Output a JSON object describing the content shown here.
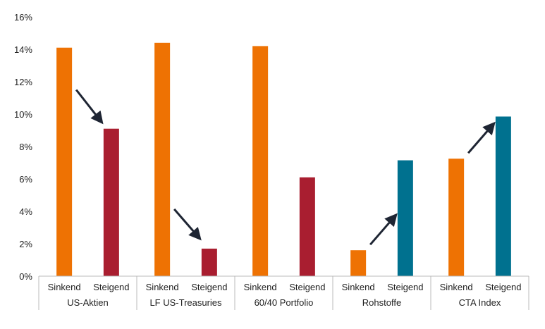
{
  "chart_data": {
    "type": "bar",
    "title": "",
    "xlabel": "",
    "ylabel": "",
    "ylim": [
      0,
      16
    ],
    "yticks": [
      "0%",
      "2%",
      "4%",
      "6%",
      "8%",
      "10%",
      "12%",
      "14%",
      "16%"
    ],
    "grid": false,
    "groups": [
      {
        "name": "US-Aktien",
        "bars": [
          {
            "label": "Sinkend",
            "value": 14.1,
            "color": "#EE7203"
          },
          {
            "label": "Steigend",
            "value": 9.1,
            "color": "#A91E30"
          }
        ],
        "trend": "down"
      },
      {
        "name": "LF US-Treasuries",
        "bars": [
          {
            "label": "Sinkend",
            "value": 14.4,
            "color": "#EE7203"
          },
          {
            "label": "Steigend",
            "value": 1.7,
            "color": "#A91E30"
          }
        ],
        "trend": "down"
      },
      {
        "name": "60/40 Portfolio",
        "bars": [
          {
            "label": "Sinkend",
            "value": 14.2,
            "color": "#EE7203"
          },
          {
            "label": "Steigend",
            "value": 6.1,
            "color": "#A91E30"
          }
        ],
        "trend": "none"
      },
      {
        "name": "Rohstoffe",
        "bars": [
          {
            "label": "Sinkend",
            "value": 1.6,
            "color": "#EE7203"
          },
          {
            "label": "Steigend",
            "value": 7.15,
            "color": "#00718F"
          }
        ],
        "trend": "up"
      },
      {
        "name": "CTA Index",
        "bars": [
          {
            "label": "Sinkend",
            "value": 7.25,
            "color": "#EE7203"
          },
          {
            "label": "Steigend",
            "value": 9.85,
            "color": "#00718F"
          }
        ],
        "trend": "up"
      }
    ],
    "colors": {
      "sinkend": "#EE7203",
      "steigend_negative": "#A91E30",
      "steigend_positive": "#00718F",
      "arrow": "#1E2533"
    }
  }
}
